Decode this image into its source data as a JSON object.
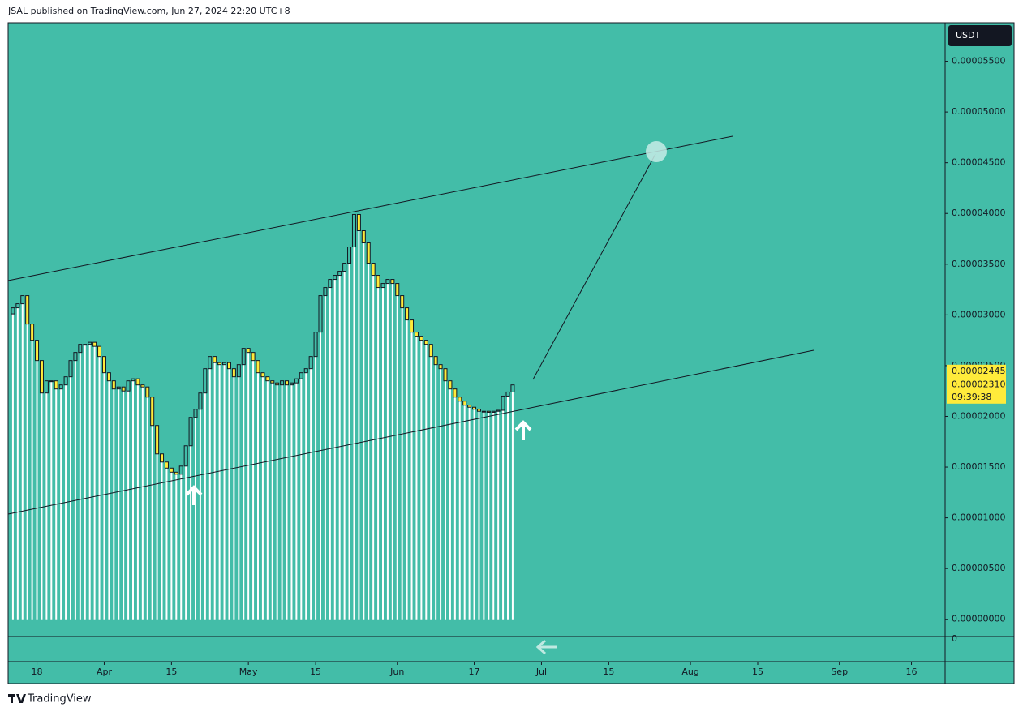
{
  "header": {
    "text": "JSAL published on TradingView.com, Jun 27, 2024 22:20 UTC+8"
  },
  "footer": {
    "text": "TradingView"
  },
  "chart_data": {
    "type": "candlestick",
    "currency": "USDT",
    "up_color": "#43bda8",
    "down_color": "#ffeb3b",
    "x": [
      "Mar 13",
      "Mar 14",
      "Mar 15",
      "Mar 16",
      "Mar 17",
      "Mar 18",
      "Mar 19",
      "Mar 20",
      "Mar 21",
      "Mar 22",
      "Mar 23",
      "Mar 24",
      "Mar 25",
      "Mar 26",
      "Mar 27",
      "Mar 28",
      "Mar 29",
      "Mar 30",
      "Mar 31",
      "Apr 1",
      "Apr 2",
      "Apr 3",
      "Apr 4",
      "Apr 5",
      "Apr 6",
      "Apr 7",
      "Apr 8",
      "Apr 9",
      "Apr 10",
      "Apr 11",
      "Apr 12",
      "Apr 13",
      "Apr 14",
      "Apr 15",
      "Apr 16",
      "Apr 17",
      "Apr 18",
      "Apr 19",
      "Apr 20",
      "Apr 21",
      "Apr 22",
      "Apr 23",
      "Apr 24",
      "Apr 25",
      "Apr 26",
      "Apr 27",
      "Apr 28",
      "Apr 29",
      "Apr 30",
      "May 1",
      "May 2",
      "May 3",
      "May 4",
      "May 5",
      "May 6",
      "May 7",
      "May 8",
      "May 9",
      "May 10",
      "May 11",
      "May 12",
      "May 13",
      "May 14",
      "May 15",
      "May 16",
      "May 17",
      "May 18",
      "May 19",
      "May 20",
      "May 21",
      "May 22",
      "May 23",
      "May 24",
      "May 25",
      "May 26",
      "May 27",
      "May 28",
      "May 29",
      "May 30",
      "May 31",
      "Jun 1",
      "Jun 2",
      "Jun 3",
      "Jun 4",
      "Jun 5",
      "Jun 6",
      "Jun 7",
      "Jun 8",
      "Jun 9",
      "Jun 10",
      "Jun 11",
      "Jun 12",
      "Jun 13",
      "Jun 14",
      "Jun 15",
      "Jun 16",
      "Jun 17",
      "Jun 18",
      "Jun 19",
      "Jun 20",
      "Jun 21",
      "Jun 22",
      "Jun 23",
      "Jun 24",
      "Jun 25"
    ],
    "open": [
      3.01e-05,
      3.07e-05,
      3.11e-05,
      3.19e-05,
      2.91e-05,
      2.75e-05,
      2.55e-05,
      2.23e-05,
      2.35e-05,
      2.35e-05,
      2.27e-05,
      2.31e-05,
      2.39e-05,
      2.55e-05,
      2.63e-05,
      2.71e-05,
      2.71e-05,
      2.73e-05,
      2.69e-05,
      2.59e-05,
      2.43e-05,
      2.35e-05,
      2.27e-05,
      2.29e-05,
      2.25e-05,
      2.35e-05,
      2.37e-05,
      2.31e-05,
      2.29e-05,
      2.19e-05,
      1.91e-05,
      1.63e-05,
      1.55e-05,
      1.49e-05,
      1.45e-05,
      1.43e-05,
      1.51e-05,
      1.71e-05,
      1.99e-05,
      2.07e-05,
      2.23e-05,
      2.47e-05,
      2.59e-05,
      2.53e-05,
      2.51e-05,
      2.53e-05,
      2.47e-05,
      2.39e-05,
      2.51e-05,
      2.67e-05,
      2.63e-05,
      2.55e-05,
      2.43e-05,
      2.39e-05,
      2.35e-05,
      2.33e-05,
      2.31e-05,
      2.35e-05,
      2.31e-05,
      2.33e-05,
      2.37e-05,
      2.43e-05,
      2.47e-05,
      2.59e-05,
      2.83e-05,
      3.19e-05,
      3.27e-05,
      3.35e-05,
      3.39e-05,
      3.43e-05,
      3.51e-05,
      3.67e-05,
      3.99e-05,
      3.83e-05,
      3.71e-05,
      3.51e-05,
      3.39e-05,
      3.27e-05,
      3.31e-05,
      3.35e-05,
      3.31e-05,
      3.19e-05,
      3.07e-05,
      2.95e-05,
      2.83e-05,
      2.79e-05,
      2.75e-05,
      2.71e-05,
      2.59e-05,
      2.51e-05,
      2.47e-05,
      2.35e-05,
      2.27e-05,
      2.19e-05,
      2.15e-05,
      2.11e-05,
      2.09e-05,
      2.07e-05,
      2.05e-05,
      2.05e-05,
      2.04e-05,
      2.05e-05,
      2.06e-05,
      2.2e-05,
      2.24e-05
    ],
    "close": [
      3.07e-05,
      3.11e-05,
      3.19e-05,
      2.91e-05,
      2.75e-05,
      2.55e-05,
      2.23e-05,
      2.35e-05,
      2.35e-05,
      2.27e-05,
      2.31e-05,
      2.39e-05,
      2.55e-05,
      2.63e-05,
      2.71e-05,
      2.71e-05,
      2.73e-05,
      2.69e-05,
      2.59e-05,
      2.43e-05,
      2.35e-05,
      2.27e-05,
      2.29e-05,
      2.25e-05,
      2.35e-05,
      2.37e-05,
      2.31e-05,
      2.29e-05,
      2.19e-05,
      1.91e-05,
      1.63e-05,
      1.55e-05,
      1.49e-05,
      1.45e-05,
      1.43e-05,
      1.51e-05,
      1.71e-05,
      1.99e-05,
      2.07e-05,
      2.23e-05,
      2.47e-05,
      2.59e-05,
      2.53e-05,
      2.51e-05,
      2.53e-05,
      2.47e-05,
      2.39e-05,
      2.51e-05,
      2.67e-05,
      2.63e-05,
      2.55e-05,
      2.43e-05,
      2.39e-05,
      2.35e-05,
      2.33e-05,
      2.31e-05,
      2.35e-05,
      2.31e-05,
      2.33e-05,
      2.37e-05,
      2.43e-05,
      2.47e-05,
      2.59e-05,
      2.83e-05,
      3.19e-05,
      3.27e-05,
      3.35e-05,
      3.39e-05,
      3.43e-05,
      3.51e-05,
      3.67e-05,
      3.99e-05,
      3.83e-05,
      3.71e-05,
      3.51e-05,
      3.39e-05,
      3.27e-05,
      3.31e-05,
      3.35e-05,
      3.31e-05,
      3.19e-05,
      3.07e-05,
      2.95e-05,
      2.83e-05,
      2.79e-05,
      2.75e-05,
      2.71e-05,
      2.59e-05,
      2.51e-05,
      2.47e-05,
      2.35e-05,
      2.27e-05,
      2.19e-05,
      2.15e-05,
      2.11e-05,
      2.09e-05,
      2.07e-05,
      2.05e-05,
      2.05e-05,
      2.04e-05,
      2.05e-05,
      2.06e-05,
      2.2e-05,
      2.24e-05,
      2.31e-05
    ],
    "xlim": [
      "Mar 12",
      "Sep 23"
    ],
    "xticks": [
      {
        "value": "Mar 18",
        "label": "18"
      },
      {
        "value": "Apr 1",
        "label": "Apr"
      },
      {
        "value": "Apr 15",
        "label": "15"
      },
      {
        "value": "May 1",
        "label": "May"
      },
      {
        "value": "May 15",
        "label": "15"
      },
      {
        "value": "Jun 1",
        "label": "Jun"
      },
      {
        "value": "Jun 17",
        "label": "17"
      },
      {
        "value": "Jul 1",
        "label": "Jul"
      },
      {
        "value": "Jul 15",
        "label": "15"
      },
      {
        "value": "Aug 1",
        "label": "Aug"
      },
      {
        "value": "Aug 15",
        "label": "15"
      },
      {
        "value": "Sep 1",
        "label": "Sep"
      },
      {
        "value": "Sep 16",
        "label": "16"
      }
    ],
    "ylim": [
      -1.7e-06,
      5.88e-05
    ],
    "yticks": [
      {
        "value": 0,
        "label": "0.00000000"
      },
      {
        "value": 5e-06,
        "label": "0.00000500"
      },
      {
        "value": 1e-05,
        "label": "0.00001000"
      },
      {
        "value": 1.5e-05,
        "label": "0.00001500"
      },
      {
        "value": 2e-05,
        "label": "0.00002000"
      },
      {
        "value": 2.5e-05,
        "label": "0.00002500"
      },
      {
        "value": 3e-05,
        "label": "0.00003000"
      },
      {
        "value": 3.5e-05,
        "label": "0.00003500"
      },
      {
        "value": 4e-05,
        "label": "0.00004000"
      },
      {
        "value": 4.5e-05,
        "label": "0.00004500"
      },
      {
        "value": 5e-05,
        "label": "0.00005000"
      },
      {
        "value": 5.5e-05,
        "label": "0.00005500"
      }
    ],
    "price_labels": [
      {
        "value": 2.445e-05,
        "label": "0.00002445"
      },
      {
        "value": 2.31e-05,
        "label": "0.00002310"
      }
    ],
    "countdown": "09:39:38",
    "indicator_yticks": [
      0
    ]
  }
}
